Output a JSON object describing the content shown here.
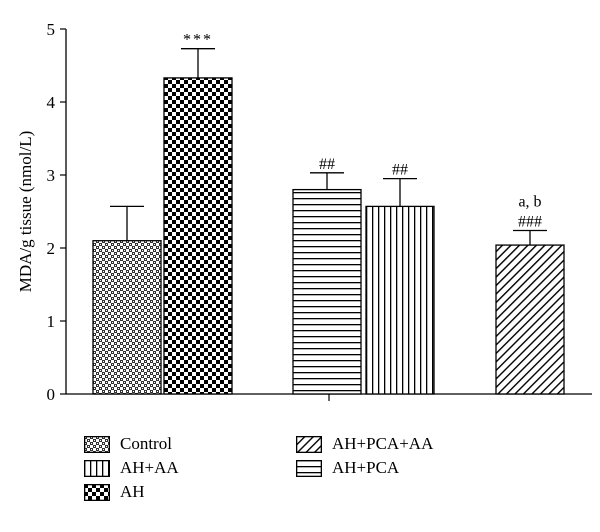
{
  "chart_data": {
    "type": "bar",
    "categories": [
      "Control",
      "AH",
      "AH+PCA",
      "AH+AA",
      "AH+PCA+AA"
    ],
    "series": [
      {
        "values": [
          2.1,
          4.33,
          2.8,
          2.57,
          2.04
        ],
        "errors": [
          0.47,
          0.4,
          0.23,
          0.38,
          0.2
        ]
      }
    ],
    "annotations": [
      {
        "lines": []
      },
      {
        "lines": [
          "***"
        ]
      },
      {
        "lines": [
          "##"
        ]
      },
      {
        "lines": [
          "##"
        ]
      },
      {
        "lines": [
          "a, b",
          "###"
        ]
      }
    ],
    "patterns": [
      "crosshatch",
      "checker",
      "horizontal",
      "vertical",
      "diagonal"
    ],
    "ylabel": "MDA/g tissue (nmol/L)",
    "xlabel": "",
    "ylim": [
      0,
      5
    ],
    "yticks": [
      "0",
      "1",
      "2",
      "3",
      "4",
      "5"
    ],
    "grid": false,
    "legend": {
      "placement": "bottom",
      "order": [
        0,
        3,
        1,
        4,
        2
      ]
    }
  }
}
